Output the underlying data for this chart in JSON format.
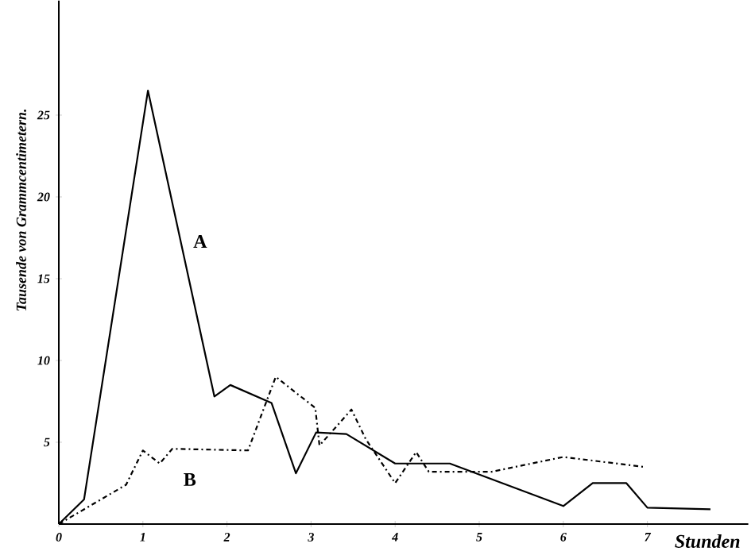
{
  "chart_data": {
    "type": "line",
    "ylabel": "Tausende von Grammcentimetern.",
    "xlabel": "Stunden",
    "xlim": [
      0,
      8.2
    ],
    "ylim": [
      0,
      32
    ],
    "xticks": [
      0,
      1,
      2,
      3,
      4,
      5,
      6,
      7
    ],
    "yticks": [
      5,
      10,
      15,
      20,
      25
    ],
    "grid": false,
    "series": [
      {
        "name": "A",
        "color": "#000000",
        "line_style": "solid",
        "x": [
          0,
          0.3,
          1.06,
          1.85,
          2.04,
          2.53,
          2.82,
          3.06,
          3.42,
          4.0,
          4.65,
          6.0,
          6.35,
          6.75,
          7.0,
          7.75
        ],
        "values": [
          0,
          1.5,
          26.5,
          7.8,
          8.5,
          7.4,
          3.1,
          5.6,
          5.5,
          3.7,
          3.7,
          1.1,
          2.5,
          2.5,
          1.0,
          0.9
        ]
      },
      {
        "name": "B",
        "color": "#000000",
        "line_style": "dashed",
        "x": [
          0,
          0.3,
          0.8,
          1.0,
          1.2,
          1.35,
          2.25,
          2.58,
          3.05,
          3.1,
          3.48,
          3.65,
          4.0,
          4.25,
          4.4,
          5.15,
          6.0,
          6.95
        ],
        "values": [
          0,
          0.9,
          2.4,
          4.5,
          3.7,
          4.6,
          4.5,
          9.0,
          7.1,
          4.8,
          7.0,
          5.2,
          2.5,
          4.4,
          3.2,
          3.2,
          4.1,
          3.5
        ]
      }
    ]
  }
}
